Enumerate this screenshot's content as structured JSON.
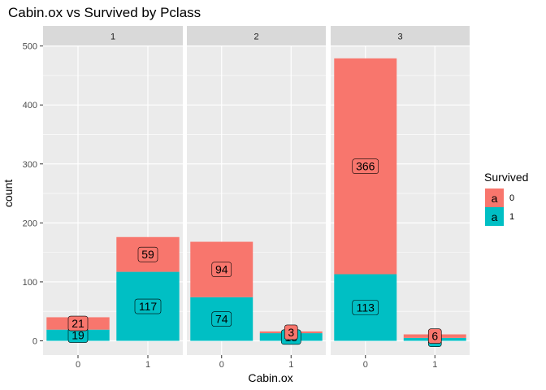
{
  "chart_data": {
    "type": "bar",
    "stacked": true,
    "title": "Cabin.ox vs Survived by Pclass",
    "xlabel": "Cabin.ox",
    "ylabel": "count",
    "ylim": [
      0,
      500
    ],
    "yticks": [
      0,
      100,
      200,
      300,
      400,
      500
    ],
    "categories": [
      "0",
      "1"
    ],
    "legend": {
      "title": "Survived",
      "position": "right",
      "key_glyph": "a",
      "entries": [
        {
          "label": "0",
          "color": "#F8766D"
        },
        {
          "label": "1",
          "color": "#00BFC4"
        }
      ]
    },
    "facets": [
      {
        "label": "1",
        "series": [
          {
            "name": "0",
            "values": [
              21,
              59
            ]
          },
          {
            "name": "1",
            "values": [
              19,
              117
            ]
          }
        ]
      },
      {
        "label": "2",
        "series": [
          {
            "name": "0",
            "values": [
              94,
              3
            ]
          },
          {
            "name": "1",
            "values": [
              74,
              13
            ]
          }
        ]
      },
      {
        "label": "3",
        "series": [
          {
            "name": "0",
            "values": [
              366,
              6
            ]
          },
          {
            "name": "1",
            "values": [
              113,
              5
            ]
          }
        ]
      }
    ],
    "grid": true,
    "colors": {
      "panel_bg": "#EBEBEB",
      "strip_bg": "#D9D9D9",
      "grid": "#FFFFFF"
    }
  }
}
